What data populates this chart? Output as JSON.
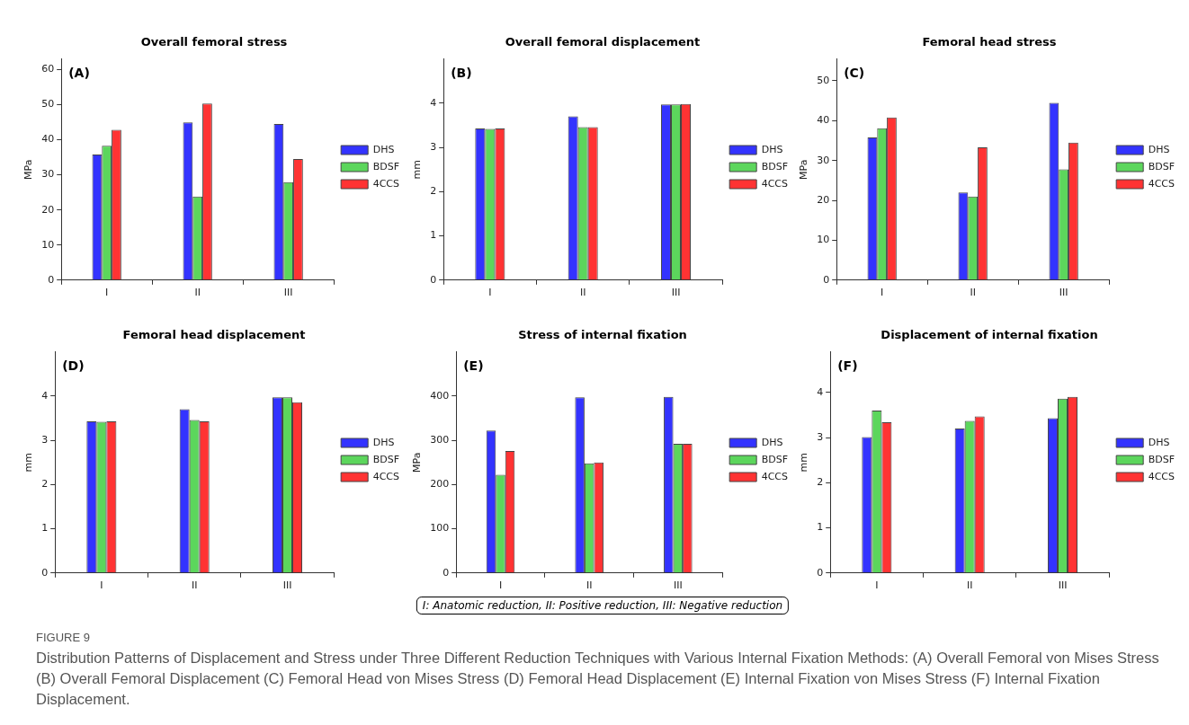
{
  "chart_data": [
    {
      "type": "bar",
      "title": "Overall femoral stress",
      "ylabel": "MPa",
      "categories": [
        "I",
        "II",
        "III"
      ],
      "series": [
        {
          "name": "DHS",
          "color": "#3333ff",
          "values": [
            35.8,
            44.9,
            44.5
          ]
        },
        {
          "name": "BDSF",
          "color": "#5cd65c",
          "values": [
            38.3,
            23.8,
            27.9
          ]
        },
        {
          "name": "4CCS",
          "color": "#ff3333",
          "values": [
            42.8,
            50.3,
            34.5
          ]
        }
      ],
      "ylim": [
        0,
        63
      ],
      "yticks": [
        0,
        10,
        20,
        30,
        40,
        50,
        60
      ],
      "grid": false,
      "legend": "right",
      "annotations": [
        "(A)"
      ]
    },
    {
      "type": "bar",
      "title": "Overall femoral displacement",
      "ylabel": "mm",
      "categories": [
        "I",
        "II",
        "III"
      ],
      "series": [
        {
          "name": "DHS",
          "color": "#3333ff",
          "values": [
            3.43,
            3.7,
            3.97
          ]
        },
        {
          "name": "BDSF",
          "color": "#5cd65c",
          "values": [
            3.42,
            3.46,
            3.97
          ]
        },
        {
          "name": "4CCS",
          "color": "#ff3333",
          "values": [
            3.43,
            3.46,
            3.98
          ]
        }
      ],
      "ylim": [
        0,
        5
      ],
      "yticks": [
        0,
        1,
        2,
        3,
        4
      ],
      "grid": false,
      "legend": "right",
      "annotations": [
        "(B)"
      ]
    },
    {
      "type": "bar",
      "title": "Femoral head stress",
      "ylabel": "MPa",
      "categories": [
        "I",
        "II",
        "III"
      ],
      "series": [
        {
          "name": "DHS",
          "color": "#3333ff",
          "values": [
            35.8,
            22.0,
            44.5
          ]
        },
        {
          "name": "BDSF",
          "color": "#5cd65c",
          "values": [
            38.1,
            21.0,
            27.8
          ]
        },
        {
          "name": "4CCS",
          "color": "#ff3333",
          "values": [
            40.8,
            33.3,
            34.5
          ]
        }
      ],
      "ylim": [
        0,
        55.5
      ],
      "yticks": [
        0,
        10,
        20,
        30,
        40,
        50
      ],
      "grid": false,
      "legend": "right",
      "annotations": [
        "(C)"
      ]
    },
    {
      "type": "bar",
      "title": "Femoral head displacement",
      "ylabel": "mm",
      "categories": [
        "I",
        "II",
        "III"
      ],
      "series": [
        {
          "name": "DHS",
          "color": "#3333ff",
          "values": [
            3.43,
            3.7,
            3.97
          ]
        },
        {
          "name": "BDSF",
          "color": "#5cd65c",
          "values": [
            3.42,
            3.46,
            3.97
          ]
        },
        {
          "name": "4CCS",
          "color": "#ff3333",
          "values": [
            3.43,
            3.43,
            3.86
          ]
        }
      ],
      "ylim": [
        0,
        5
      ],
      "yticks": [
        0,
        1,
        2,
        3,
        4
      ],
      "grid": false,
      "legend": "right",
      "annotations": [
        "(D)"
      ]
    },
    {
      "type": "bar",
      "title": "Stress of internal fixation",
      "ylabel": "MPa",
      "categories": [
        "I",
        "II",
        "III"
      ],
      "series": [
        {
          "name": "DHS",
          "color": "#3333ff",
          "values": [
            322,
            397,
            398
          ]
        },
        {
          "name": "BDSF",
          "color": "#5cd65c",
          "values": [
            222,
            248,
            292
          ]
        },
        {
          "name": "4CCS",
          "color": "#ff3333",
          "values": [
            276,
            250,
            292
          ]
        }
      ],
      "ylim": [
        0,
        500
      ],
      "yticks": [
        0,
        100,
        200,
        300,
        400
      ],
      "grid": false,
      "legend": "right",
      "annotations": [
        "(E)",
        "I: Anatomic reduction, II: Positive reduction, III: Negative reduction"
      ]
    },
    {
      "type": "bar",
      "title": "Displacement of internal fixation",
      "ylabel": "mm",
      "categories": [
        "I",
        "II",
        "III"
      ],
      "series": [
        {
          "name": "DHS",
          "color": "#3333ff",
          "values": [
            3.01,
            3.2,
            3.43
          ]
        },
        {
          "name": "BDSF",
          "color": "#5cd65c",
          "values": [
            3.6,
            3.37,
            3.86
          ]
        },
        {
          "name": "4CCS",
          "color": "#ff3333",
          "values": [
            3.34,
            3.47,
            3.9
          ]
        }
      ],
      "ylim": [
        0,
        4.9
      ],
      "yticks": [
        0,
        1,
        2,
        3,
        4
      ],
      "grid": false,
      "legend": "right",
      "annotations": [
        "(F)"
      ]
    },
    {
      "type": "other",
      "annotations": [
        "FIGURE 9",
        "Distribution Patterns of Displacement and Stress under Three Different Reduction Techniques with Various Internal Fixation Methods: (A) Overall Femoral von Mises Stress (B) Overall Femoral Displacement (C) Femoral Head von Mises Stress (D) Femoral Head Displacement (E) Internal Fixation von Mises Stress (F) Internal Fixation Displacement."
      ]
    }
  ]
}
